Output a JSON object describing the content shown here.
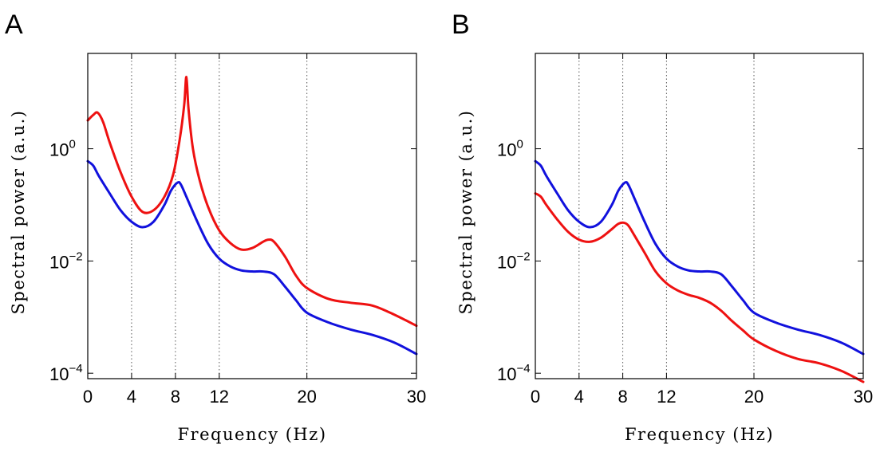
{
  "chart_data": [
    {
      "panel": "A",
      "type": "line",
      "xlabel": "Frequency (Hz)",
      "ylabel": "Spectral power (a.u.)",
      "xlim": [
        0,
        30
      ],
      "ylim": [
        8e-05,
        50
      ],
      "yscale": "log",
      "xticks": [
        0,
        4,
        8,
        12,
        20,
        30
      ],
      "xtick_labels": [
        "0",
        "4",
        "8",
        "12",
        "20",
        "30"
      ],
      "yticks": [
        0.0001,
        0.01,
        1
      ],
      "ytick_bases": [
        "10",
        "10",
        "10"
      ],
      "ytick_exps": [
        "−4",
        "−2",
        "0"
      ],
      "grid_x": [
        4,
        8,
        12,
        20
      ],
      "series": [
        {
          "color": "#ee1111",
          "x": [
            0,
            0.5,
            0.9,
            1.4,
            2,
            3,
            4,
            5,
            6,
            7,
            7.8,
            8.4,
            8.8,
            9.0,
            9.2,
            9.6,
            10.2,
            11,
            12,
            13,
            14,
            15,
            16,
            16.5,
            17,
            18,
            19,
            20,
            22,
            24,
            26,
            28,
            30
          ],
          "y": [
            3.2,
            4.0,
            4.4,
            3.0,
            1.3,
            0.38,
            0.14,
            0.075,
            0.08,
            0.14,
            0.35,
            1.5,
            6,
            19,
            5,
            1.0,
            0.28,
            0.09,
            0.035,
            0.021,
            0.016,
            0.017,
            0.022,
            0.024,
            0.022,
            0.012,
            0.0055,
            0.0033,
            0.0021,
            0.0018,
            0.0016,
            0.0011,
            0.0007
          ]
        },
        {
          "color": "#1111dd",
          "x": [
            0,
            0.5,
            1,
            2,
            3,
            4,
            5,
            6,
            7,
            7.6,
            8.2,
            8.5,
            9,
            10,
            11,
            12,
            13,
            14,
            15,
            16,
            17,
            18,
            19,
            20,
            22,
            24,
            26,
            28,
            30
          ],
          "y": [
            0.6,
            0.5,
            0.33,
            0.16,
            0.08,
            0.05,
            0.04,
            0.05,
            0.1,
            0.18,
            0.25,
            0.23,
            0.14,
            0.05,
            0.02,
            0.011,
            0.008,
            0.0068,
            0.0065,
            0.0065,
            0.0058,
            0.0035,
            0.002,
            0.0012,
            0.0008,
            0.0006,
            0.00048,
            0.00035,
            0.00022
          ]
        }
      ]
    },
    {
      "panel": "B",
      "type": "line",
      "xlabel": "Frequency (Hz)",
      "ylabel": "Spectral power (a.u.)",
      "xlim": [
        0,
        30
      ],
      "ylim": [
        8e-05,
        50
      ],
      "yscale": "log",
      "xticks": [
        0,
        4,
        8,
        12,
        20,
        30
      ],
      "xtick_labels": [
        "0",
        "4",
        "8",
        "12",
        "20",
        "30"
      ],
      "yticks": [
        0.0001,
        0.01,
        1
      ],
      "ytick_bases": [
        "10",
        "10",
        "10"
      ],
      "ytick_exps": [
        "−4",
        "−2",
        "0"
      ],
      "grid_x": [
        4,
        8,
        12,
        20
      ],
      "series": [
        {
          "color": "#1111dd",
          "x": [
            0,
            0.5,
            1,
            2,
            3,
            4,
            5,
            6,
            7,
            7.6,
            8.2,
            8.5,
            9,
            10,
            11,
            12,
            13,
            14,
            15,
            16,
            17,
            18,
            19,
            20,
            22,
            24,
            26,
            28,
            30
          ],
          "y": [
            0.6,
            0.5,
            0.33,
            0.16,
            0.08,
            0.05,
            0.04,
            0.05,
            0.1,
            0.18,
            0.25,
            0.23,
            0.14,
            0.05,
            0.02,
            0.011,
            0.008,
            0.0068,
            0.0065,
            0.0065,
            0.0058,
            0.0035,
            0.002,
            0.0012,
            0.0008,
            0.0006,
            0.00048,
            0.00035,
            0.00022
          ]
        },
        {
          "color": "#ee1111",
          "x": [
            0,
            0.5,
            1,
            2,
            3,
            4,
            5,
            6,
            7,
            7.6,
            8.1,
            8.5,
            9,
            10,
            11,
            12,
            13,
            14,
            15,
            16,
            17,
            18,
            19,
            20,
            22,
            24,
            26,
            28,
            30
          ],
          "y": [
            0.16,
            0.14,
            0.1,
            0.055,
            0.033,
            0.024,
            0.022,
            0.026,
            0.037,
            0.046,
            0.048,
            0.043,
            0.03,
            0.014,
            0.0065,
            0.004,
            0.003,
            0.0025,
            0.0022,
            0.0018,
            0.0013,
            0.00085,
            0.00058,
            0.0004,
            0.00025,
            0.00018,
            0.00015,
            0.00011,
            7e-05
          ]
        }
      ]
    }
  ]
}
